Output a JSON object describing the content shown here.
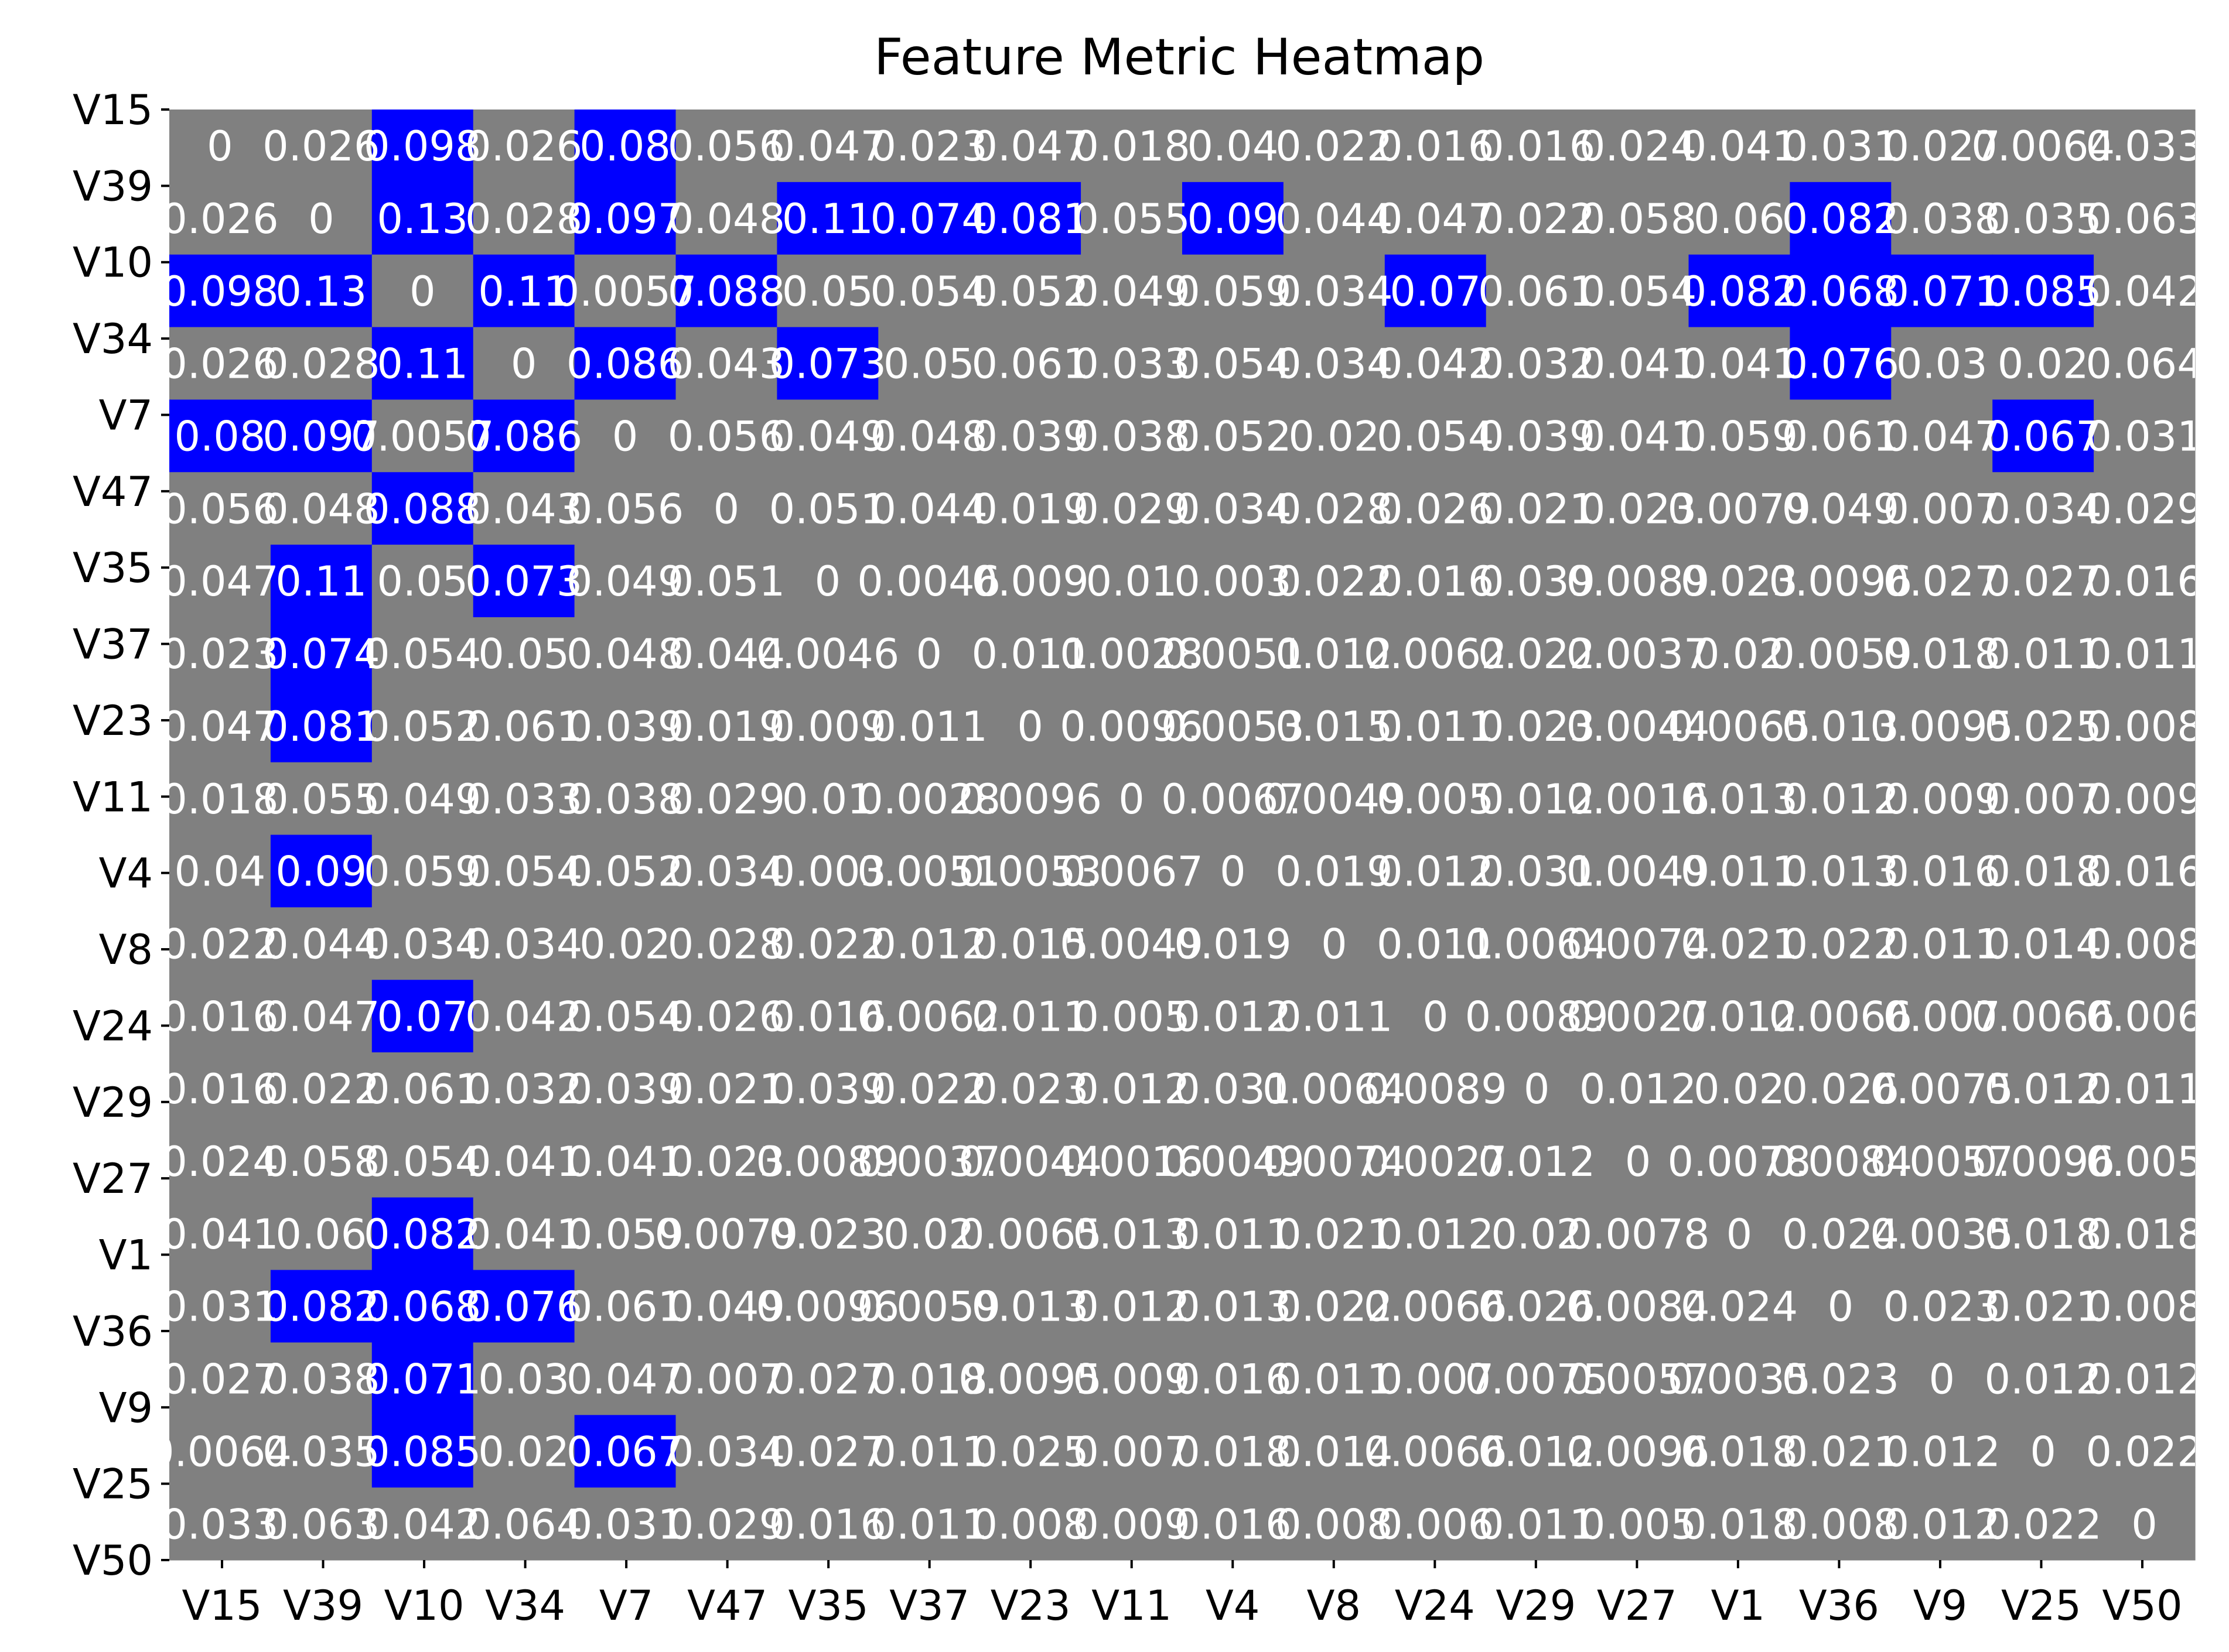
{
  "chart_data": {
    "type": "heatmap",
    "title": "Feature Metric Heatmap",
    "xlabel": "",
    "ylabel": "",
    "labels": [
      "V15",
      "V39",
      "V10",
      "V34",
      "V7",
      "V47",
      "V35",
      "V37",
      "V23",
      "V11",
      "V4",
      "V8",
      "V24",
      "V29",
      "V27",
      "V1",
      "V36",
      "V9",
      "V25",
      "V50"
    ],
    "threshold": 0.065,
    "colors": {
      "low": "#808080",
      "high": "#0000ff",
      "text": "#ffffff"
    },
    "values": [
      [
        "0",
        "0.026",
        "0.098",
        "0.026",
        "0.08",
        "0.056",
        "0.047",
        "0.023",
        "0.047",
        "0.018",
        "0.04",
        "0.022",
        "0.016",
        "0.016",
        "0.024",
        "0.041",
        "0.031",
        "0.027",
        "0.0064",
        "0.033"
      ],
      [
        "0.026",
        "0",
        "0.13",
        "0.028",
        "0.097",
        "0.048",
        "0.11",
        "0.074",
        "0.081",
        "0.055",
        "0.09",
        "0.044",
        "0.047",
        "0.022",
        "0.058",
        "0.06",
        "0.082",
        "0.038",
        "0.035",
        "0.063"
      ],
      [
        "0.098",
        "0.13",
        "0",
        "0.11",
        "0.0057",
        "0.088",
        "0.05",
        "0.054",
        "0.052",
        "0.049",
        "0.059",
        "0.034",
        "0.07",
        "0.061",
        "0.054",
        "0.082",
        "0.068",
        "0.071",
        "0.085",
        "0.042"
      ],
      [
        "0.026",
        "0.028",
        "0.11",
        "0",
        "0.086",
        "0.043",
        "0.073",
        "0.05",
        "0.061",
        "0.033",
        "0.054",
        "0.034",
        "0.042",
        "0.032",
        "0.041",
        "0.041",
        "0.076",
        "0.03",
        "0.02",
        "0.064"
      ],
      [
        "0.08",
        "0.097",
        "0.0057",
        "0.086",
        "0",
        "0.056",
        "0.049",
        "0.048",
        "0.039",
        "0.038",
        "0.052",
        "0.02",
        "0.054",
        "0.039",
        "0.041",
        "0.059",
        "0.061",
        "0.047",
        "0.067",
        "0.031"
      ],
      [
        "0.056",
        "0.048",
        "0.088",
        "0.043",
        "0.056",
        "0",
        "0.051",
        "0.044",
        "0.019",
        "0.029",
        "0.034",
        "0.028",
        "0.026",
        "0.021",
        "0.023",
        "0.0079",
        "0.049",
        "0.007",
        "0.034",
        "0.029"
      ],
      [
        "0.047",
        "0.11",
        "0.05",
        "0.073",
        "0.049",
        "0.051",
        "0",
        "0.0046",
        "0.009",
        "0.01",
        "0.003",
        "0.022",
        "0.016",
        "0.039",
        "0.0089",
        "0.023",
        "0.0096",
        "0.027",
        "0.027",
        "0.016"
      ],
      [
        "0.023",
        "0.074",
        "0.054",
        "0.05",
        "0.048",
        "0.044",
        "0.0046",
        "0",
        "0.011",
        "0.0028",
        "0.0051",
        "0.012",
        "0.0062",
        "0.022",
        "0.0037",
        "0.02",
        "0.0059",
        "0.018",
        "0.011",
        "0.011"
      ],
      [
        "0.047",
        "0.081",
        "0.052",
        "0.061",
        "0.039",
        "0.019",
        "0.009",
        "0.011",
        "0",
        "0.0096",
        "0.0053",
        "0.015",
        "0.011",
        "0.023",
        "0.0044",
        "0.0065",
        "0.013",
        "0.0095",
        "0.025",
        "0.008"
      ],
      [
        "0.018",
        "0.055",
        "0.049",
        "0.033",
        "0.038",
        "0.029",
        "0.01",
        "0.0028",
        "0.0096",
        "0",
        "0.0067",
        "0.0049",
        "0.005",
        "0.012",
        "0.0016",
        "0.013",
        "0.012",
        "0.009",
        "0.007",
        "0.009"
      ],
      [
        "0.04",
        "0.09",
        "0.059",
        "0.054",
        "0.052",
        "0.034",
        "0.003",
        "0.0051",
        "0.0053",
        "0.0067",
        "0",
        "0.019",
        "0.012",
        "0.031",
        "0.0049",
        "0.011",
        "0.013",
        "0.016",
        "0.018",
        "0.016"
      ],
      [
        "0.022",
        "0.044",
        "0.034",
        "0.034",
        "0.02",
        "0.028",
        "0.022",
        "0.012",
        "0.015",
        "0.0049",
        "0.019",
        "0",
        "0.011",
        "0.0064",
        "0.0074",
        "0.021",
        "0.022",
        "0.011",
        "0.014",
        "0.008"
      ],
      [
        "0.016",
        "0.047",
        "0.07",
        "0.042",
        "0.054",
        "0.026",
        "0.016",
        "0.0062",
        "0.011",
        "0.005",
        "0.012",
        "0.011",
        "0",
        "0.0089",
        "0.0027",
        "0.012",
        "0.0066",
        "0.007",
        "0.0066",
        "0.006"
      ],
      [
        "0.016",
        "0.022",
        "0.061",
        "0.032",
        "0.039",
        "0.021",
        "0.039",
        "0.022",
        "0.023",
        "0.012",
        "0.031",
        "0.0064",
        "0.0089",
        "0",
        "0.012",
        "0.02",
        "0.026",
        "0.0075",
        "0.012",
        "0.011"
      ],
      [
        "0.024",
        "0.058",
        "0.054",
        "0.041",
        "0.041",
        "0.023",
        "0.0089",
        "0.0037",
        "0.0044",
        "0.0016",
        "0.0049",
        "0.0074",
        "0.0027",
        "0.012",
        "0",
        "0.0078",
        "0.0084",
        "0.0057",
        "0.0096",
        "0.005"
      ],
      [
        "0.041",
        "0.06",
        "0.082",
        "0.041",
        "0.059",
        "0.0079",
        "0.023",
        "0.02",
        "0.0065",
        "0.013",
        "0.011",
        "0.021",
        "0.012",
        "0.02",
        "0.0078",
        "0",
        "0.024",
        "0.0035",
        "0.018",
        "0.018"
      ],
      [
        "0.031",
        "0.082",
        "0.068",
        "0.076",
        "0.061",
        "0.049",
        "0.0096",
        "0.0059",
        "0.013",
        "0.012",
        "0.013",
        "0.022",
        "0.0066",
        "0.026",
        "0.0084",
        "0.024",
        "0",
        "0.023",
        "0.021",
        "0.008"
      ],
      [
        "0.027",
        "0.038",
        "0.071",
        "0.03",
        "0.047",
        "0.007",
        "0.027",
        "0.018",
        "0.0095",
        "0.009",
        "0.016",
        "0.011",
        "0.007",
        "0.0075",
        "0.0057",
        "0.0035",
        "0.023",
        "0",
        "0.012",
        "0.012"
      ],
      [
        "0.0064",
        "0.035",
        "0.085",
        "0.02",
        "0.067",
        "0.034",
        "0.027",
        "0.011",
        "0.025",
        "0.007",
        "0.018",
        "0.014",
        "0.0066",
        "0.012",
        "0.0096",
        "0.018",
        "0.021",
        "0.012",
        "0",
        "0.022"
      ],
      [
        "0.033",
        "0.063",
        "0.042",
        "0.064",
        "0.031",
        "0.029",
        "0.016",
        "0.011",
        "0.008",
        "0.009",
        "0.016",
        "0.008",
        "0.006",
        "0.011",
        "0.005",
        "0.018",
        "0.008",
        "0.012",
        "0.022",
        "0"
      ]
    ]
  }
}
